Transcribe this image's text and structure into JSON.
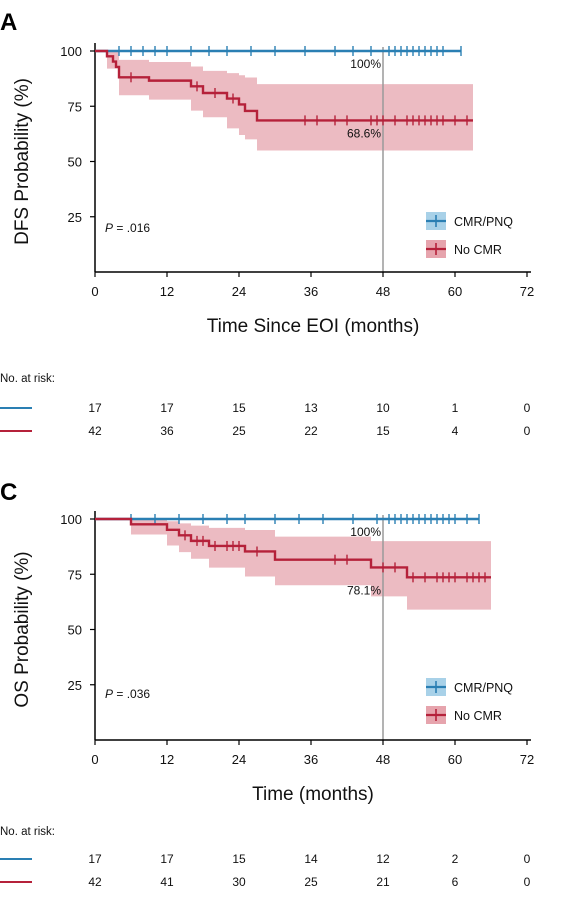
{
  "chart_data": [
    {
      "type": "line",
      "panel_label": "A",
      "xlabel": "Time Since EOI (months)",
      "ylabel": "DFS Probability (%)",
      "xlim": [
        0,
        72
      ],
      "ylim": [
        0,
        100
      ],
      "xticks": [
        0,
        12,
        24,
        36,
        48,
        60,
        72
      ],
      "yticks": [
        25,
        50,
        75,
        100
      ],
      "p_prefix": "P",
      "p_value": " = .016",
      "reference_line_x": 48,
      "annotations": [
        "100%",
        "68.6%"
      ],
      "legend_position": "bottom-right",
      "series": [
        {
          "name": "CMR/PNQ",
          "color": "#2a7fb3",
          "fill": "#a8d1e8",
          "steps": [
            [
              0,
              100
            ],
            [
              61,
              100
            ]
          ],
          "censors": [
            4,
            6,
            8,
            10,
            12,
            16,
            19,
            22,
            26,
            30,
            35,
            40,
            43,
            46,
            49,
            50,
            51,
            52,
            53,
            54,
            55,
            56,
            57,
            58,
            61
          ],
          "ci_steps": []
        },
        {
          "name": "No CMR",
          "color": "#b5213a",
          "fill": "#e6a4ad",
          "steps": [
            [
              0,
              100
            ],
            [
              2,
              100
            ],
            [
              2,
              97.6
            ],
            [
              3,
              97.6
            ],
            [
              3,
              95.2
            ],
            [
              3.5,
              95.2
            ],
            [
              3.5,
              92.8
            ],
            [
              4,
              92.8
            ],
            [
              4,
              88.1
            ],
            [
              9,
              88.1
            ],
            [
              9,
              86.6
            ],
            [
              16,
              86.6
            ],
            [
              16,
              84.0
            ],
            [
              18,
              84.0
            ],
            [
              18,
              81.0
            ],
            [
              22,
              81.0
            ],
            [
              22,
              78.5
            ],
            [
              24,
              78.5
            ],
            [
              24,
              75.8
            ],
            [
              25,
              75.8
            ],
            [
              25,
              72.9
            ],
            [
              27,
              72.9
            ],
            [
              27,
              68.6
            ],
            [
              63,
              68.6
            ]
          ],
          "censors": [
            6,
            17,
            20,
            23,
            35,
            37,
            40,
            42,
            46,
            47,
            48,
            50,
            52,
            53,
            54,
            55,
            56,
            57,
            58,
            60,
            62
          ],
          "ci_steps": [
            [
              0,
              100,
              100
            ],
            [
              2,
              92,
              100
            ],
            [
              4,
              80,
              96
            ],
            [
              9,
              78,
              95
            ],
            [
              16,
              73,
              93
            ],
            [
              18,
              70,
              91
            ],
            [
              22,
              65,
              90
            ],
            [
              24,
              62,
              89
            ],
            [
              25,
              60,
              88
            ],
            [
              27,
              55,
              85
            ],
            [
              63,
              55,
              85
            ]
          ]
        }
      ],
      "risk_table": {
        "title": "No. at risk:",
        "times": [
          0,
          12,
          24,
          36,
          48,
          60,
          72
        ],
        "rows": [
          {
            "series": "CMR/PNQ",
            "counts": [
              "17",
              "17",
              "15",
              "13",
              "10",
              "1",
              "0"
            ]
          },
          {
            "series": "No CMR",
            "counts": [
              "42",
              "36",
              "25",
              "22",
              "15",
              "4",
              "0"
            ]
          }
        ]
      }
    },
    {
      "type": "line",
      "panel_label": "C",
      "xlabel": "Time (months)",
      "ylabel": "OS Probability (%)",
      "xlim": [
        0,
        72
      ],
      "ylim": [
        0,
        100
      ],
      "xticks": [
        0,
        12,
        24,
        36,
        48,
        60,
        72
      ],
      "yticks": [
        25,
        50,
        75,
        100
      ],
      "p_prefix": "P",
      "p_value": " = .036",
      "reference_line_x": 48,
      "annotations": [
        "100%",
        "78.1%"
      ],
      "legend_position": "bottom-right",
      "series": [
        {
          "name": "CMR/PNQ",
          "color": "#2a7fb3",
          "fill": "#a8d1e8",
          "steps": [
            [
              0,
              100
            ],
            [
              64,
              100
            ]
          ],
          "censors": [
            6,
            10,
            14,
            18,
            22,
            25,
            30,
            34,
            38,
            43,
            47,
            49,
            50,
            51,
            52,
            53,
            54,
            55,
            56,
            57,
            58,
            59,
            60,
            62,
            64
          ],
          "ci_steps": []
        },
        {
          "name": "No CMR",
          "color": "#b5213a",
          "fill": "#e6a4ad",
          "steps": [
            [
              0,
              100
            ],
            [
              6,
              100
            ],
            [
              6,
              97.6
            ],
            [
              12,
              97.6
            ],
            [
              12,
              95.1
            ],
            [
              14,
              95.1
            ],
            [
              14,
              92.6
            ],
            [
              16,
              92.6
            ],
            [
              16,
              90.1
            ],
            [
              19,
              90.1
            ],
            [
              19,
              87.8
            ],
            [
              25,
              87.8
            ],
            [
              25,
              85.3
            ],
            [
              30,
              85.3
            ],
            [
              30,
              81.6
            ],
            [
              46,
              81.6
            ],
            [
              46,
              78.1
            ],
            [
              52,
              78.1
            ],
            [
              52,
              73.6
            ],
            [
              66,
              73.6
            ]
          ],
          "censors": [
            15,
            17,
            18,
            20,
            22,
            23,
            24,
            27,
            40,
            42,
            48,
            50,
            53,
            55,
            57,
            58,
            59,
            60,
            62,
            63,
            64,
            65
          ],
          "ci_steps": [
            [
              0,
              100,
              100
            ],
            [
              6,
              93,
              100
            ],
            [
              12,
              88,
              99
            ],
            [
              14,
              85,
              98
            ],
            [
              16,
              82,
              97
            ],
            [
              19,
              78,
              96
            ],
            [
              25,
              74,
              95
            ],
            [
              30,
              70,
              92
            ],
            [
              46,
              65,
              90
            ],
            [
              52,
              59,
              90
            ],
            [
              66,
              59,
              90
            ]
          ]
        }
      ],
      "risk_table": {
        "title": "No. at risk:",
        "times": [
          0,
          12,
          24,
          36,
          48,
          60,
          72
        ],
        "rows": [
          {
            "series": "CMR/PNQ",
            "counts": [
              "17",
              "17",
              "15",
              "14",
              "12",
              "2",
              "0"
            ]
          },
          {
            "series": "No CMR",
            "counts": [
              "42",
              "41",
              "30",
              "25",
              "21",
              "6",
              "0"
            ]
          }
        ]
      }
    }
  ]
}
